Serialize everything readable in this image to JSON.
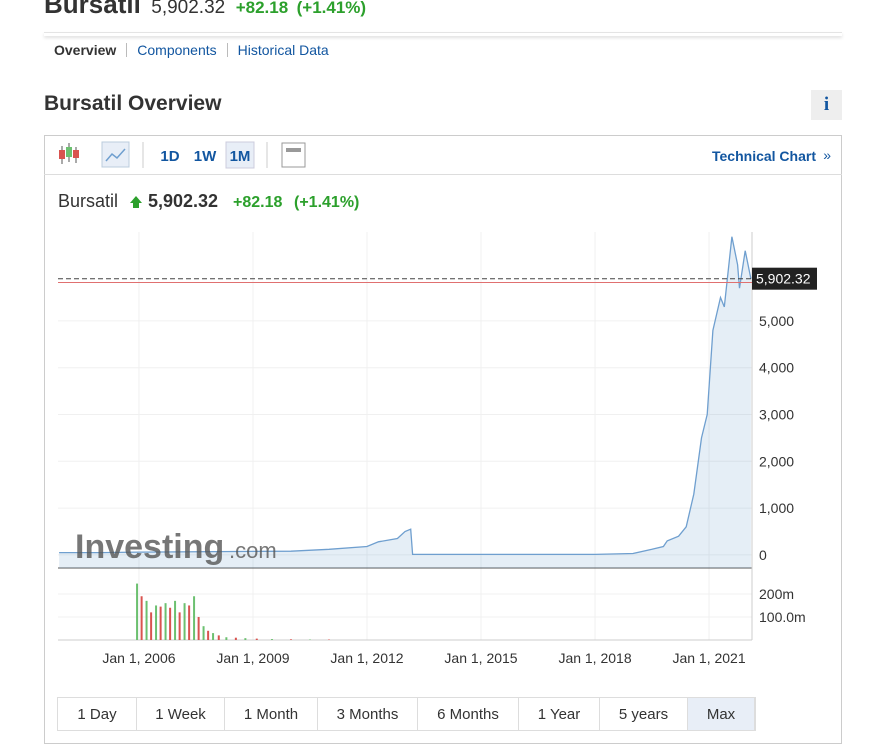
{
  "header": {
    "title": "Bursatil",
    "price": "5,902.32",
    "change": "+82.18",
    "percent": "(+1.41%)"
  },
  "tabs": [
    "Overview",
    "Components",
    "Historical Data"
  ],
  "section_title": "Bursatil Overview",
  "info_icon": "i",
  "toolbar": {
    "periods": [
      "1D",
      "1W",
      "1M"
    ],
    "selected": 2,
    "technical_link": "Technical Chart",
    "link_arrow": "»"
  },
  "ranges": [
    "1 Day",
    "1 Week",
    "1 Month",
    "3 Months",
    "6 Months",
    "1 Year",
    "5 years",
    "Max"
  ],
  "selected_range": 7,
  "watermark": {
    "brand": "Investing",
    "suffix": ".com"
  },
  "chart_data": {
    "type": "area",
    "legend": {
      "name": "Bursatil",
      "price": {
        "value": 5902.32,
        "label": "5,902.32"
      },
      "change": {
        "value": 82.18,
        "label": "+82.18"
      },
      "percent": "(+1.41%)"
    },
    "xlim": [
      2003.87,
      2022.13
    ],
    "xticks": [
      {
        "value": 2006,
        "label": "Jan 1, 2006"
      },
      {
        "value": 2009,
        "label": "Jan 1, 2009"
      },
      {
        "value": 2012,
        "label": "Jan 1, 2012"
      },
      {
        "value": 2015,
        "label": "Jan 1, 2015"
      },
      {
        "value": 2018,
        "label": "Jan 1, 2018"
      },
      {
        "value": 2021,
        "label": "Jan 1, 2021"
      }
    ],
    "ylim": [
      -280,
      6900
    ],
    "yticks": [
      0,
      {
        "value": 1000,
        "label": "1,000"
      },
      {
        "value": 2000,
        "label": "2,000"
      },
      {
        "value": 3000,
        "label": "3,000"
      },
      {
        "value": 4000,
        "label": "4,000"
      },
      {
        "value": 5000,
        "label": "5,000"
      }
    ],
    "y2lim": [
      0,
      304000000
    ],
    "y2ticks": [
      {
        "value": 100000000,
        "label": "100.0m"
      },
      {
        "value": 200000000,
        "label": "200m"
      }
    ],
    "grid": true,
    "series": [
      {
        "name": "Bursatil",
        "color": "#6f9fcf",
        "x": [
          2003.9,
          2005,
          2006,
          2008,
          2010,
          2011,
          2012,
          2012.3,
          2012.8,
          2013.0,
          2013.15,
          2013.2,
          2015,
          2018,
          2019,
          2019.5,
          2019.8,
          2019.9,
          2020.2,
          2020.4,
          2020.6,
          2020.8,
          2020.95,
          2021.1,
          2021.3,
          2021.4,
          2021.6,
          2021.75,
          2021.8,
          2021.95,
          2022.1
        ],
        "values": [
          50,
          50,
          60,
          70,
          80,
          120,
          180,
          280,
          350,
          500,
          550,
          10,
          10,
          10,
          30,
          120,
          180,
          300,
          400,
          600,
          1300,
          2500,
          3000,
          4800,
          5500,
          5300,
          6800,
          6200,
          5700,
          6500,
          5902.32
        ]
      },
      {
        "name": "Volume up",
        "color": "#6cc070",
        "axis": "y2",
        "x": [
          2005.95,
          2006.2,
          2006.45,
          2006.7,
          2006.95,
          2007.2,
          2007.45,
          2007.7,
          2007.95,
          2008.3,
          2008.8,
          2009.5,
          2010.5
        ],
        "values": [
          245000000,
          170000000,
          150000000,
          160000000,
          170000000,
          160000000,
          190000000,
          60000000,
          30000000,
          12000000,
          8000000,
          4000000,
          2000000
        ]
      },
      {
        "name": "Volume down",
        "color": "#d9534f",
        "axis": "y2",
        "x": [
          2006.07,
          2006.32,
          2006.57,
          2006.82,
          2007.07,
          2007.32,
          2007.57,
          2007.82,
          2008.1,
          2008.55,
          2009.1,
          2010,
          2011
        ],
        "values": [
          190000000,
          120000000,
          145000000,
          140000000,
          120000000,
          150000000,
          100000000,
          40000000,
          20000000,
          10000000,
          6000000,
          3000000,
          2000000
        ]
      }
    ]
  }
}
